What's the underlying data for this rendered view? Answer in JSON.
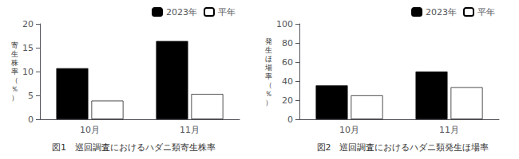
{
  "chart_data": [
    {
      "type": "bar",
      "title": "図1　巡回調査におけるハダニ類寄生株率",
      "ylabel": "寄\n生\n株\n率\n（\n％\n）",
      "categories": [
        "10月",
        "11月"
      ],
      "series": [
        {
          "name": "2023年",
          "color": "#000000",
          "values": [
            10.7,
            16.4
          ]
        },
        {
          "name": "平年",
          "color": "#ffffff",
          "values": [
            3.9,
            5.3
          ]
        }
      ],
      "ylim": [
        0,
        20
      ],
      "yticks": [
        0,
        5,
        10,
        15,
        20
      ],
      "grid": false,
      "legend": "upper right"
    },
    {
      "type": "bar",
      "title": "図2　巡回調査におけるハダニ類発生ほ場率",
      "ylabel": "発\n生\nほ\n場\n率\n（\n％\n）",
      "categories": [
        "10月",
        "11月"
      ],
      "series": [
        {
          "name": "2023年",
          "color": "#000000",
          "values": [
            35.5,
            50.0
          ]
        },
        {
          "name": "平年",
          "color": "#ffffff",
          "values": [
            25.0,
            33.5
          ]
        }
      ],
      "ylim": [
        0,
        100
      ],
      "yticks": [
        0,
        20,
        40,
        60,
        80,
        100
      ],
      "grid": false,
      "legend": "upper right"
    }
  ]
}
